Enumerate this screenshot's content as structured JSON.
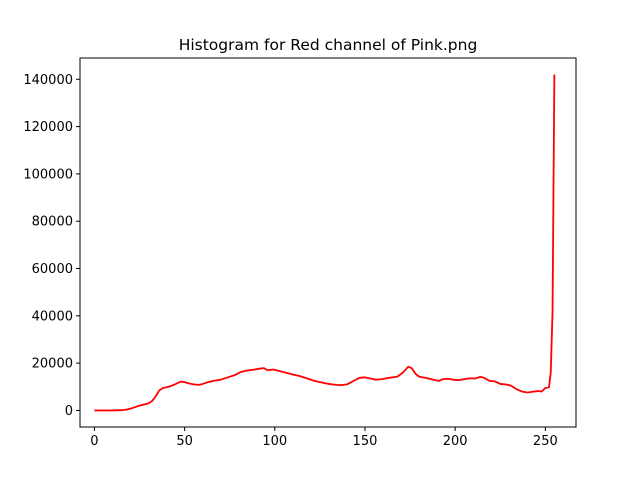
{
  "chart_data": {
    "type": "line",
    "title": "Histogram for Red channel of Pink.png",
    "xlabel": "",
    "ylabel": "",
    "xlim": [
      -8,
      267
    ],
    "ylim": [
      -7000,
      149000
    ],
    "x_ticks": [
      0,
      50,
      100,
      150,
      200,
      250
    ],
    "y_ticks": [
      0,
      20000,
      40000,
      60000,
      80000,
      100000,
      120000,
      140000
    ],
    "grid": false,
    "legend": "none",
    "series": [
      {
        "color": "#ff0000",
        "points": [
          [
            0,
            0
          ],
          [
            5,
            0
          ],
          [
            10,
            0
          ],
          [
            15,
            100
          ],
          [
            18,
            400
          ],
          [
            21,
            1000
          ],
          [
            24,
            1800
          ],
          [
            27,
            2400
          ],
          [
            30,
            3000
          ],
          [
            32,
            4000
          ],
          [
            34,
            6000
          ],
          [
            36,
            8500
          ],
          [
            38,
            9500
          ],
          [
            40,
            9800
          ],
          [
            42,
            10200
          ],
          [
            44,
            10800
          ],
          [
            46,
            11500
          ],
          [
            48,
            12200
          ],
          [
            50,
            12000
          ],
          [
            52,
            11500
          ],
          [
            55,
            11000
          ],
          [
            58,
            10800
          ],
          [
            60,
            11200
          ],
          [
            63,
            12000
          ],
          [
            66,
            12500
          ],
          [
            70,
            13000
          ],
          [
            74,
            14000
          ],
          [
            78,
            15000
          ],
          [
            81,
            16200
          ],
          [
            84,
            16800
          ],
          [
            88,
            17200
          ],
          [
            91,
            17600
          ],
          [
            94,
            17900
          ],
          [
            96,
            17000
          ],
          [
            99,
            17300
          ],
          [
            102,
            16800
          ],
          [
            106,
            16000
          ],
          [
            110,
            15200
          ],
          [
            114,
            14500
          ],
          [
            118,
            13500
          ],
          [
            122,
            12500
          ],
          [
            126,
            11800
          ],
          [
            130,
            11200
          ],
          [
            134,
            10800
          ],
          [
            137,
            10700
          ],
          [
            140,
            11000
          ],
          [
            142,
            11800
          ],
          [
            144,
            12600
          ],
          [
            147,
            13800
          ],
          [
            150,
            14000
          ],
          [
            153,
            13500
          ],
          [
            156,
            13000
          ],
          [
            159,
            13200
          ],
          [
            162,
            13600
          ],
          [
            165,
            14000
          ],
          [
            168,
            14300
          ],
          [
            171,
            16000
          ],
          [
            174,
            18500
          ],
          [
            176,
            17800
          ],
          [
            178,
            15500
          ],
          [
            180,
            14300
          ],
          [
            184,
            13700
          ],
          [
            188,
            13000
          ],
          [
            191,
            12500
          ],
          [
            193,
            13200
          ],
          [
            196,
            13400
          ],
          [
            199,
            13000
          ],
          [
            202,
            12800
          ],
          [
            205,
            13200
          ],
          [
            208,
            13600
          ],
          [
            211,
            13500
          ],
          [
            214,
            14200
          ],
          [
            216,
            13800
          ],
          [
            219,
            12500
          ],
          [
            222,
            12300
          ],
          [
            225,
            11200
          ],
          [
            228,
            11000
          ],
          [
            231,
            10500
          ],
          [
            234,
            9000
          ],
          [
            237,
            8000
          ],
          [
            240,
            7600
          ],
          [
            243,
            7900
          ],
          [
            246,
            8200
          ],
          [
            248,
            8000
          ],
          [
            250,
            9500
          ],
          [
            252,
            9800
          ],
          [
            253,
            16000
          ],
          [
            254,
            42000
          ],
          [
            255,
            142000
          ]
        ]
      }
    ]
  }
}
